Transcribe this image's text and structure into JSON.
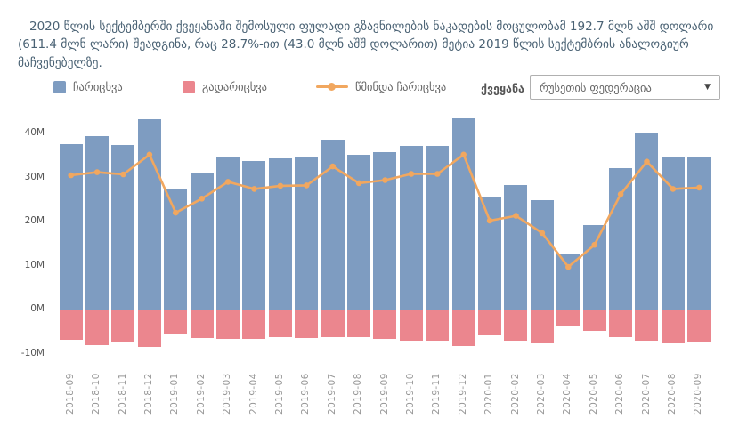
{
  "summary": {
    "text": "2020 წლის სექტემბერში ქვეყანაში შემოსული ფულადი გზავნილების ნაკადების მოცულობამ 192.7 მლნ აშშ დოლარი (611.4 მლნ ლარი) შეადგინა, რაც 28.7%-ით (43.0 მლნ აშშ დოლარით) მეტია 2019 წლის სექტემბრის ანალოგიურ მაჩვენებელზე."
  },
  "filter": {
    "label": "ქვეყანა",
    "selected": "რუსეთის ფედერაცია",
    "arrow": "▼"
  },
  "colors": {
    "inflow": "#7E9CC1",
    "outflow": "#EB868E",
    "net": "#F1A75F",
    "paragraph": "#4A6274",
    "y_tick_text": "#555555",
    "x_label_text": "#979797"
  },
  "chart_data": {
    "type": "bar+line",
    "title": "",
    "xlabel": "",
    "ylabel": "",
    "grid": false,
    "legend_position": "top",
    "ylim": [
      -10,
      44.4
    ],
    "y_ticks": [
      "40M",
      "30M",
      "20M",
      "10M",
      "0M",
      "-10M"
    ],
    "y_tick_values": [
      40,
      30,
      20,
      10,
      0,
      -10
    ],
    "categories": [
      "2018-09",
      "2018-10",
      "2018-11",
      "2018-12",
      "2019-01",
      "2019-02",
      "2019-03",
      "2019-04",
      "2019-05",
      "2019-06",
      "2019-07",
      "2019-08",
      "2019-09",
      "2019-10",
      "2019-11",
      "2019-12",
      "2020-01",
      "2020-02",
      "2020-03",
      "2020-04",
      "2020-05",
      "2020-06",
      "2020-07",
      "2020-08",
      "2020-09"
    ],
    "series": [
      {
        "name": "ჩარიცხვა",
        "type": "bar",
        "color_key": "inflow",
        "values": [
          37.6,
          39.3,
          37.4,
          43.2,
          27.3,
          31.1,
          34.7,
          33.7,
          34.3,
          34.5,
          38.6,
          35.2,
          35.8,
          37.2,
          37.2,
          43.4,
          25.7,
          28.3,
          24.8,
          12.5,
          19.2,
          32.1,
          40.2,
          34.5,
          34.7
        ]
      },
      {
        "name": "გადარიცხვა",
        "type": "bar",
        "color_key": "outflow",
        "values": [
          -6.9,
          -8.1,
          -7.3,
          -8.5,
          -5.5,
          -6.5,
          -6.6,
          -6.6,
          -6.3,
          -6.5,
          -6.3,
          -6.3,
          -6.6,
          -7.0,
          -7.0,
          -8.3,
          -5.8,
          -7.0,
          -7.7,
          -3.6,
          -4.8,
          -6.3,
          -7.1,
          -7.7,
          -7.5
        ]
      },
      {
        "name": "წმინდა ჩარიცხვა",
        "type": "line",
        "color_key": "net",
        "values": [
          30.5,
          31.2,
          30.7,
          35.2,
          22.0,
          25.2,
          29.0,
          27.4,
          28.1,
          28.2,
          32.5,
          28.7,
          29.4,
          30.8,
          30.8,
          35.2,
          20.2,
          21.3,
          17.4,
          9.7,
          14.7,
          26.2,
          33.6,
          27.4,
          27.7
        ]
      }
    ]
  }
}
